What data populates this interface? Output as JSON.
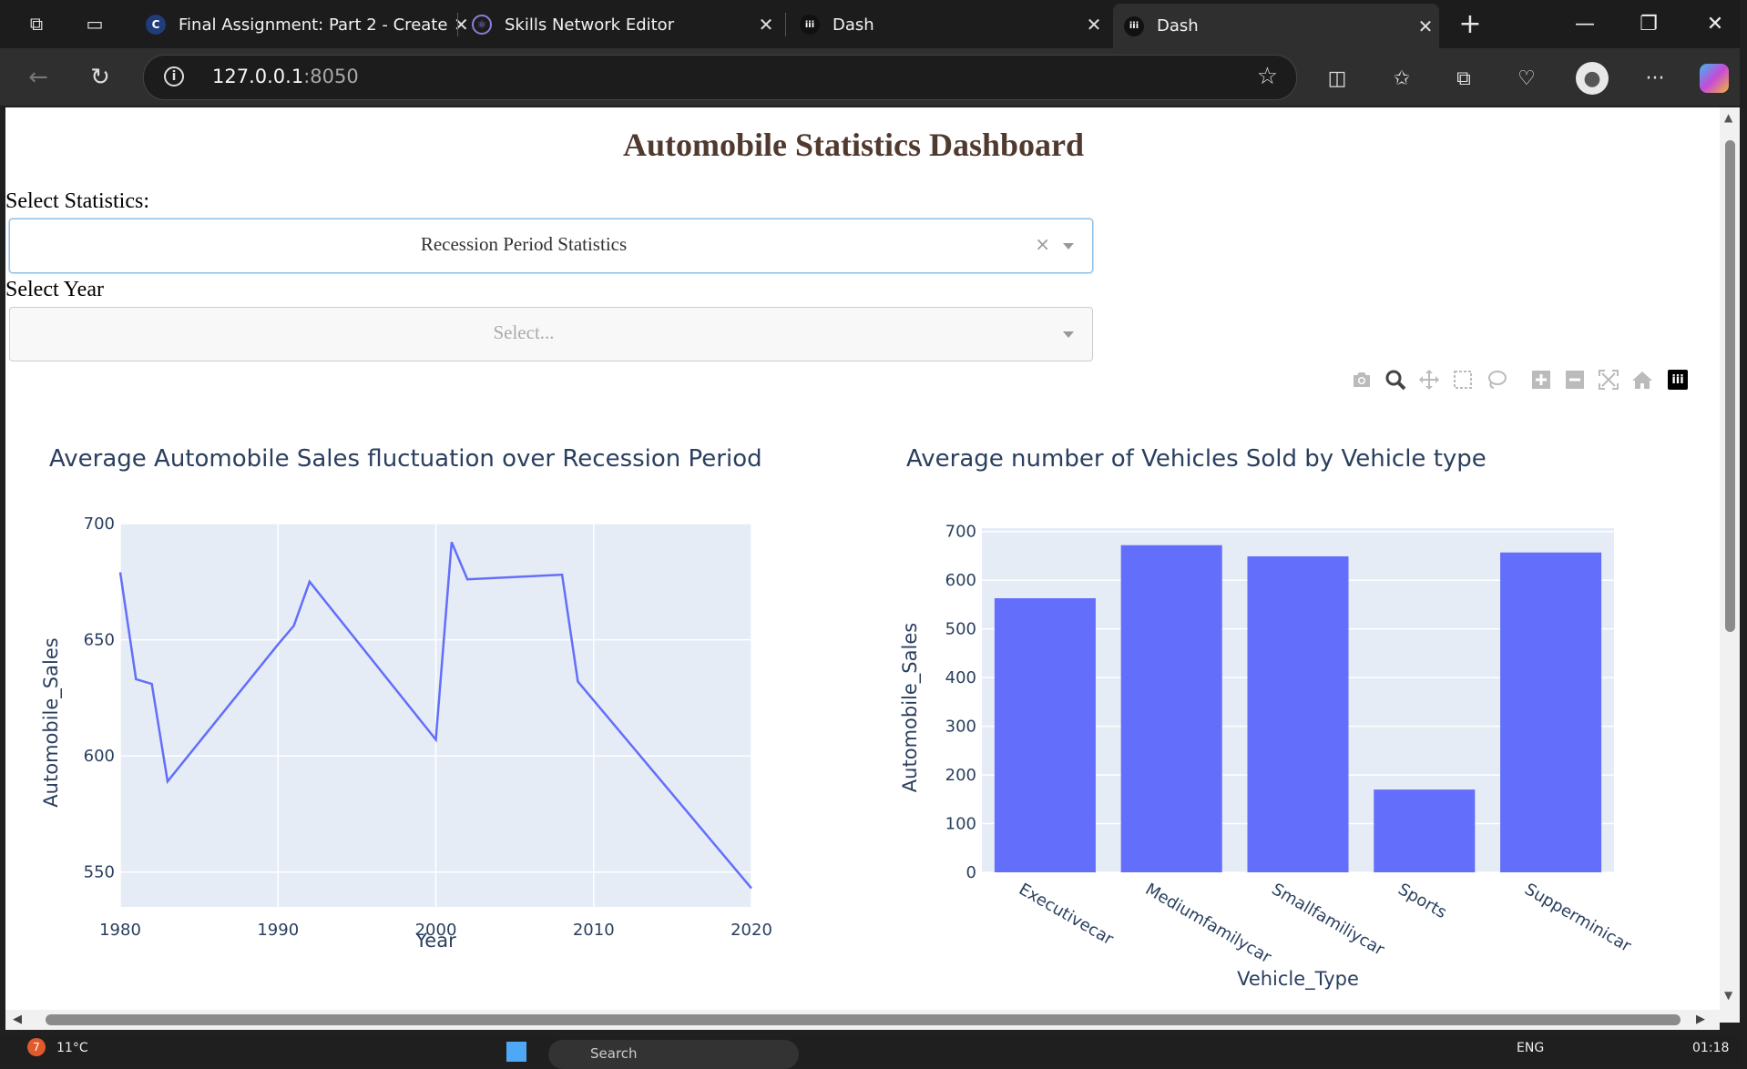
{
  "browser": {
    "tabs": [
      {
        "title": "Final Assignment: Part 2 - Create",
        "favicon": "C"
      },
      {
        "title": "Skills Network Editor",
        "favicon": "⚛"
      },
      {
        "title": "Dash",
        "favicon": "iii"
      },
      {
        "title": "Dash",
        "favicon": "iii",
        "active": true
      }
    ],
    "url_host": "127.0.0.1",
    "url_port": ":8050"
  },
  "page": {
    "title": "Automobile Statistics Dashboard",
    "stat_label": "Select Statistics:",
    "stat_value": "Recession Period Statistics",
    "stat_clear": "×",
    "year_label": "Select Year",
    "year_placeholder": "Select..."
  },
  "colors": {
    "series": "#636efa",
    "plot_bg": "#e5ecf6",
    "title": "#2a3f5f"
  },
  "chart_data": [
    {
      "type": "line",
      "title": "Average Automobile Sales fluctuation over Recession Period",
      "xlabel": "Year",
      "ylabel": "Automobile_Sales",
      "xlim": [
        1980,
        2020
      ],
      "ylim": [
        535,
        700
      ],
      "xticks": [
        1980,
        1990,
        2000,
        2010,
        2020
      ],
      "yticks": [
        550,
        600,
        650,
        700
      ],
      "x": [
        1980,
        1981,
        1982,
        1983,
        1990,
        1991,
        1992,
        2000,
        2001,
        2002,
        2008,
        2009,
        2020
      ],
      "y": [
        679,
        633,
        631,
        589,
        648,
        656,
        675,
        607,
        692,
        676,
        678,
        632,
        543
      ]
    },
    {
      "type": "bar",
      "title": "Average number of Vehicles Sold by Vehicle type",
      "xlabel": "Vehicle_Type",
      "ylabel": "Automobile_Sales",
      "ylim": [
        0,
        707
      ],
      "yticks": [
        0,
        100,
        200,
        300,
        400,
        500,
        600,
        700
      ],
      "categories": [
        "Executivecar",
        "Mediumfamilycar",
        "Smallfamiliycar",
        "Sports",
        "Supperminicar"
      ],
      "values": [
        563,
        672,
        649,
        170,
        657
      ]
    }
  ],
  "taskbar": {
    "weather": "11°C",
    "search": "Search",
    "lang": "ENG",
    "time": "01:18",
    "badge": "7"
  }
}
